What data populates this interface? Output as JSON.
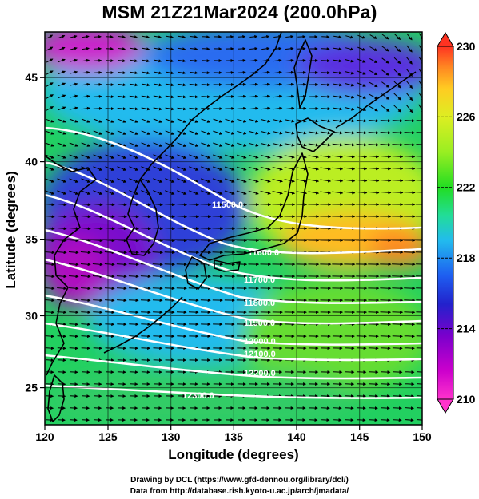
{
  "title": "MSM 21Z21Mar2024 (200.0hPa)",
  "x_axis": {
    "label": "Longitude (degrees)",
    "ticks": [
      "120",
      "125",
      "130",
      "135",
      "140",
      "145",
      "150"
    ],
    "range": [
      120,
      150
    ]
  },
  "y_axis": {
    "label": "Latitude  (degrees)",
    "ticks": [
      "25",
      "30",
      "35",
      "40",
      "45"
    ],
    "range": [
      22.4,
      47.6
    ]
  },
  "colorbar": {
    "ticks": [
      "210",
      "214",
      "218",
      "222",
      "226",
      "230"
    ],
    "range": [
      210,
      230
    ],
    "colors": [
      "#ff33cc",
      "#cc00cc",
      "#7a00cc",
      "#2222cc",
      "#1e5ef0",
      "#22bbee",
      "#22dd99",
      "#22dd22",
      "#99ee22",
      "#ddee22",
      "#ffcc22",
      "#ff8822",
      "#ff3322"
    ]
  },
  "contours": [
    {
      "label": "11500.0",
      "value": 11500
    },
    {
      "label": "11600.0",
      "value": 11600
    },
    {
      "label": "11700.0",
      "value": 11700
    },
    {
      "label": "11800.0",
      "value": 11800
    },
    {
      "label": "11900.0",
      "value": 11900
    },
    {
      "label": "12000.0",
      "value": 12000
    },
    {
      "label": "12100.0",
      "value": 12100
    },
    {
      "label": "12200.0",
      "value": 12200
    },
    {
      "label": "12300.0",
      "value": 12300
    }
  ],
  "credits": {
    "line1": "Drawing by DCL (https://www.gfd-dennou.org/library/dcl/)",
    "line2": "Data from http://database.rish.kyoto-u.ac.jp/arch/jmadata/"
  }
}
